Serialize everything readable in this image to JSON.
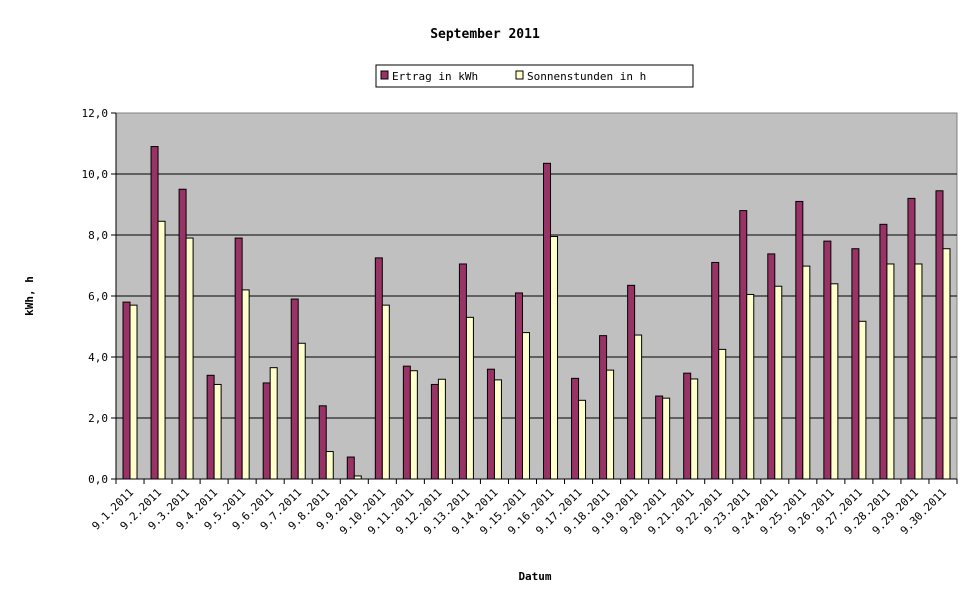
{
  "chart_data": {
    "type": "bar",
    "title": "September 2011",
    "xlabel": "Datum",
    "ylabel": "kWh, h",
    "ylim": [
      0,
      12
    ],
    "yticks": [
      "0,0",
      "2,0",
      "4,0",
      "6,0",
      "8,0",
      "10,0",
      "12,0"
    ],
    "grid": true,
    "legend_position": "top",
    "plot_background": "#C0C0C0",
    "categories": [
      "9.1.2011",
      "9.2.2011",
      "9.3.2011",
      "9.4.2011",
      "9.5.2011",
      "9.6.2011",
      "9.7.2011",
      "9.8.2011",
      "9.9.2011",
      "9.10.2011",
      "9.11.2011",
      "9.12.2011",
      "9.13.2011",
      "9.14.2011",
      "9.15.2011",
      "9.16.2011",
      "9.17.2011",
      "9.18.2011",
      "9.19.2011",
      "9.20.2011",
      "9.21.2011",
      "9.22.2011",
      "9.23.2011",
      "9.24.2011",
      "9.25.2011",
      "9.26.2011",
      "9.27.2011",
      "9.28.2011",
      "9.29.2011",
      "9.30.2011"
    ],
    "series": [
      {
        "name": "Ertrag in kWh",
        "color": "#993366",
        "values": [
          5.8,
          10.9,
          9.5,
          3.4,
          7.9,
          3.15,
          5.9,
          2.4,
          0.72,
          7.25,
          3.7,
          3.1,
          7.05,
          3.6,
          6.1,
          10.35,
          3.3,
          4.7,
          6.35,
          2.72,
          3.47,
          7.1,
          8.8,
          7.38,
          9.1,
          7.8,
          7.55,
          8.35,
          9.2,
          9.45
        ]
      },
      {
        "name": "Sonnenstunden in h",
        "color": "#FFFFCC",
        "values": [
          5.7,
          8.45,
          7.9,
          3.1,
          6.2,
          3.65,
          4.45,
          0.9,
          0.1,
          5.7,
          3.55,
          3.27,
          5.3,
          3.25,
          4.8,
          7.95,
          2.58,
          3.57,
          4.72,
          2.65,
          3.28,
          4.25,
          6.05,
          6.32,
          6.98,
          6.4,
          5.17,
          7.05,
          7.05,
          7.55
        ]
      }
    ]
  }
}
